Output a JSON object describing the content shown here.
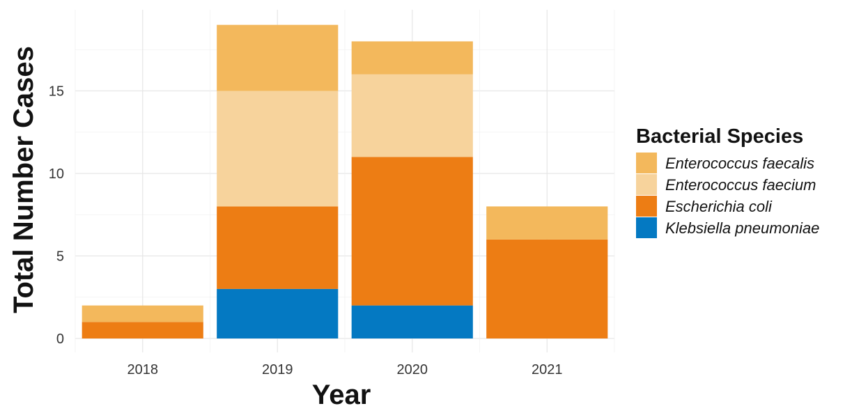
{
  "chart_data": {
    "type": "bar",
    "stacked": true,
    "title": "",
    "xlabel": "Year",
    "ylabel": "Total Number Cases",
    "categories": [
      "2018",
      "2019",
      "2020",
      "2021"
    ],
    "ylim": [
      0,
      19.5
    ],
    "yticks": [
      0,
      5,
      10,
      15
    ],
    "grid": true,
    "legend_position": "right",
    "legend_title": "Bacterial Species",
    "series": [
      {
        "name": "Klebsiella pneumoniae",
        "color": "#0479C2",
        "values": [
          0,
          3,
          2,
          0
        ]
      },
      {
        "name": "Escherichia coli",
        "color": "#ED7D14",
        "values": [
          1,
          5,
          9,
          6
        ]
      },
      {
        "name": "Enterococcus faecium",
        "color": "#F7D39C",
        "values": [
          0,
          7,
          5,
          0
        ]
      },
      {
        "name": "Enterococcus faecalis",
        "color": "#F3B85C",
        "values": [
          1,
          4,
          2,
          2
        ]
      }
    ],
    "legend_order": [
      "Enterococcus faecalis",
      "Enterococcus faecium",
      "Escherichia coli",
      "Klebsiella pneumoniae"
    ]
  }
}
